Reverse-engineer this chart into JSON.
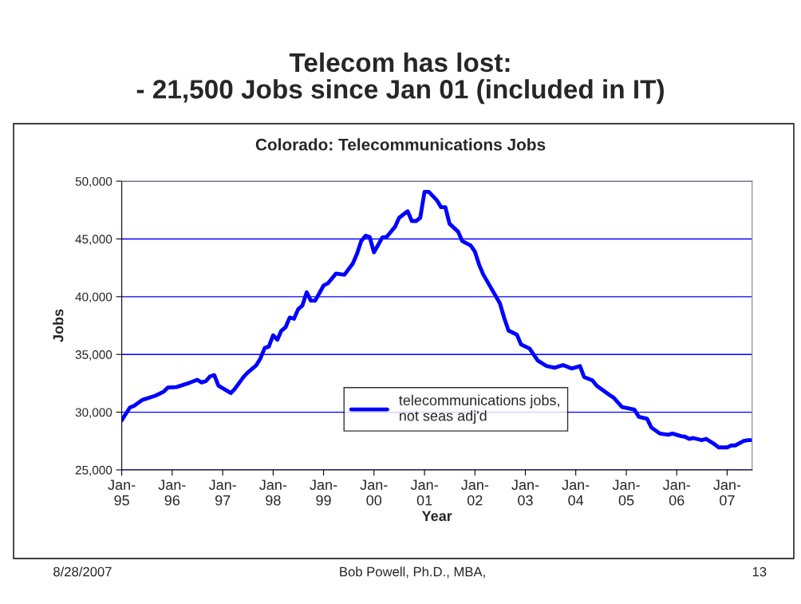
{
  "chart_data": {
    "type": "line",
    "title": "Telecom has lost:\n- 21,500 Jobs since Jan 01 (included in IT)",
    "subtitle": "Colorado: Telecommunications Jobs",
    "xlabel": "Year",
    "ylabel": "Jobs",
    "x": [
      "1995-01",
      "1995-03",
      "1995-04",
      "1995-06",
      "1995-09",
      "1995-11",
      "1995-12",
      "1996-02",
      "1996-05",
      "1996-07",
      "1996-08",
      "1996-09",
      "1996-10",
      "1996-11",
      "1996-12",
      "1997-03",
      "1997-04",
      "1997-06",
      "1997-07",
      "1997-09",
      "1997-10",
      "1997-11",
      "1997-12",
      "1998-01",
      "1998-02",
      "1998-03",
      "1998-04",
      "1998-05",
      "1998-06",
      "1998-07",
      "1998-08",
      "1998-09",
      "1998-10",
      "1998-11",
      "1999-01",
      "1999-02",
      "1999-04",
      "1999-06",
      "1999-08",
      "1999-09",
      "1999-10",
      "1999-11",
      "1999-12",
      "2000-01",
      "2000-03",
      "2000-04",
      "2000-06",
      "2000-07",
      "2000-09",
      "2000-10",
      "2000-11",
      "2000-12",
      "2001-01",
      "2001-02",
      "2001-04",
      "2001-05",
      "2001-06",
      "2001-07",
      "2001-09",
      "2001-10",
      "2001-12",
      "2002-01",
      "2002-02",
      "2002-03",
      "2002-05",
      "2002-07",
      "2002-08",
      "2002-09",
      "2002-11",
      "2002-12",
      "2003-02",
      "2003-03",
      "2003-04",
      "2003-06",
      "2003-08",
      "2003-10",
      "2003-12",
      "2004-02",
      "2004-03",
      "2004-05",
      "2004-06",
      "2004-09",
      "2004-10",
      "2004-12",
      "2005-02",
      "2005-03",
      "2005-04",
      "2005-06",
      "2005-07",
      "2005-09",
      "2005-11",
      "2005-12",
      "2006-02",
      "2006-03",
      "2006-04",
      "2006-05",
      "2006-07",
      "2006-08",
      "2006-10",
      "2006-11",
      "2007-01",
      "2007-02",
      "2007-03",
      "2007-05",
      "2007-06",
      "2007-07"
    ],
    "series": [
      {
        "name": "telecommunications jobs,\nnot seas adj'd",
        "color": "#0000ff",
        "values": [
          29300,
          30400,
          30560,
          31070,
          31420,
          31780,
          32130,
          32170,
          32520,
          32800,
          32570,
          32680,
          33100,
          33210,
          32290,
          31650,
          32060,
          33050,
          33440,
          34060,
          34660,
          35560,
          35680,
          36660,
          36270,
          37050,
          37350,
          38200,
          38090,
          38910,
          39240,
          40390,
          39650,
          39650,
          40960,
          41150,
          42000,
          41900,
          42870,
          43740,
          44820,
          45280,
          45170,
          43840,
          45120,
          45170,
          46040,
          46830,
          47400,
          46550,
          46550,
          46830,
          49080,
          49080,
          48340,
          47750,
          47750,
          46320,
          45630,
          44820,
          44430,
          43900,
          42760,
          41950,
          40690,
          39420,
          38160,
          37070,
          36710,
          35860,
          35510,
          35000,
          34470,
          34010,
          33850,
          34080,
          33780,
          33990,
          33050,
          32750,
          32290,
          31490,
          31260,
          30450,
          30290,
          30220,
          29600,
          29420,
          28680,
          28150,
          28040,
          28150,
          27920,
          27880,
          27690,
          27760,
          27580,
          27690,
          27230,
          26950,
          26950,
          27120,
          27120,
          27510,
          27580,
          27580
        ]
      }
    ],
    "xlim": [
      "1995-01",
      "2007-07"
    ],
    "xticks": [
      {
        "value": "1995-01",
        "label": "Jan-\n95"
      },
      {
        "value": "1996-01",
        "label": "Jan-\n96"
      },
      {
        "value": "1997-01",
        "label": "Jan-\n97"
      },
      {
        "value": "1998-01",
        "label": "Jan-\n98"
      },
      {
        "value": "1999-01",
        "label": "Jan-\n99"
      },
      {
        "value": "2000-01",
        "label": "Jan-\n00"
      },
      {
        "value": "2001-01",
        "label": "Jan-\n01"
      },
      {
        "value": "2002-01",
        "label": "Jan-\n02"
      },
      {
        "value": "2003-01",
        "label": "Jan-\n03"
      },
      {
        "value": "2004-01",
        "label": "Jan-\n04"
      },
      {
        "value": "2005-01",
        "label": "Jan-\n05"
      },
      {
        "value": "2006-01",
        "label": "Jan-\n06"
      },
      {
        "value": "2007-01",
        "label": "Jan-\n07"
      }
    ],
    "ylim": [
      25000,
      50000
    ],
    "yticks": [
      {
        "value": 25000,
        "label": "25,000"
      },
      {
        "value": 30000,
        "label": "30,000"
      },
      {
        "value": 35000,
        "label": "35,000"
      },
      {
        "value": 40000,
        "label": "40,000"
      },
      {
        "value": 45000,
        "label": "45,000"
      },
      {
        "value": 50000,
        "label": "50,000"
      }
    ],
    "grid": "y",
    "legend": "bottom",
    "line_style": "solid",
    "marker": "none",
    "annotations": [
      "8/28/2007",
      "Bob Powell, Ph.D., MBA,",
      "13"
    ]
  }
}
